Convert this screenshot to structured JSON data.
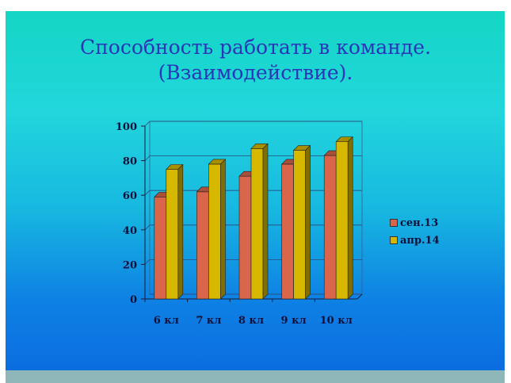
{
  "title_line1": "Способность работать в команде.",
  "title_line2": "(Взаимодействие).",
  "colors": {
    "series1": "#d9654a",
    "series2": "#d6b800"
  },
  "chart_data": {
    "type": "bar",
    "categories": [
      "6 кл",
      "7 кл",
      "8 кл",
      "9 кл",
      "10 кл"
    ],
    "series": [
      {
        "name": "сен.13",
        "values": [
          59,
          62,
          71,
          78,
          83
        ]
      },
      {
        "name": "апр.14",
        "values": [
          75,
          78,
          87,
          86,
          91
        ]
      }
    ],
    "ylim": [
      0,
      100
    ],
    "yticks": [
      "0",
      "20",
      "40",
      "60",
      "80",
      "100"
    ],
    "grid": true,
    "legend": "right"
  }
}
